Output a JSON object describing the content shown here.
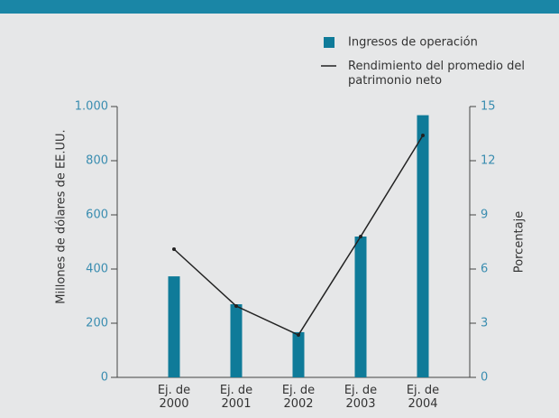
{
  "chart_data": {
    "type": "bar-line",
    "categories": [
      "Ej. de 2000",
      "Ej. de 2001",
      "Ej. de 2002",
      "Ej. de 2003",
      "Ej. de 2004"
    ],
    "series": [
      {
        "name": "Ingresos de operación",
        "color": "#0f7b99",
        "type": "bar",
        "values": [
          373,
          270,
          167,
          520,
          968
        ]
      },
      {
        "name": "Rendimiento del promedio del patrimonio neto",
        "color": "#222222",
        "type": "line",
        "axis": "y2",
        "values": [
          7.1,
          3.95,
          2.35,
          7.8,
          13.4
        ]
      }
    ],
    "ylabel": "Millones de dólares de EE.UU.",
    "y2label": "Porcentaje",
    "ylim": [
      0,
      1000
    ],
    "yticks": [
      0,
      200,
      400,
      600,
      800,
      {
        "value": 1000,
        "label": "1.000"
      }
    ],
    "y2lim": [
      0,
      15
    ],
    "y2ticks": [
      0,
      3,
      6,
      9,
      12,
      15
    ],
    "legend": "top-right",
    "grid": false
  }
}
